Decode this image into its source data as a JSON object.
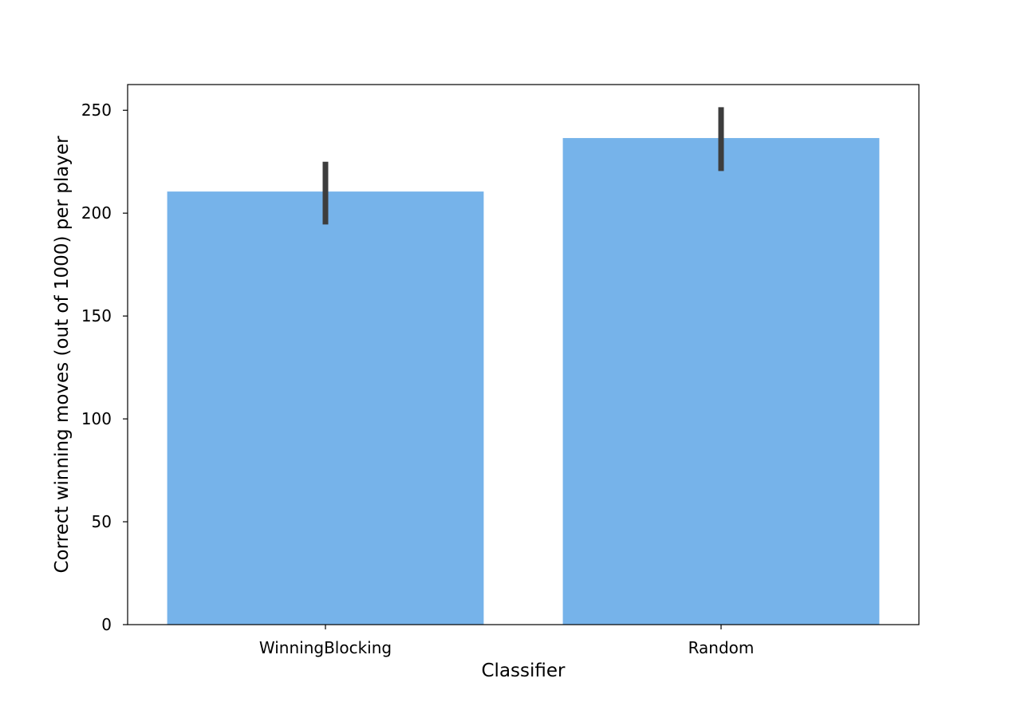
{
  "chart_data": {
    "type": "bar",
    "title": "",
    "xlabel": "Classifier",
    "ylabel": "Correct winning moves (out of 1000) per player",
    "categories": [
      "WinningBlocking",
      "Random"
    ],
    "values": [
      210.5,
      236.5
    ],
    "error_bars": [
      {
        "low": 194.5,
        "high": 225
      },
      {
        "low": 220.5,
        "high": 251.5
      }
    ],
    "ylim": [
      0,
      262.5
    ],
    "yticks": [
      0,
      50,
      100,
      150,
      200,
      250
    ],
    "grid": false,
    "colors": {
      "bar": "#76b3ea",
      "error_bar": "#3d3d3d",
      "axis": "#000000"
    }
  }
}
